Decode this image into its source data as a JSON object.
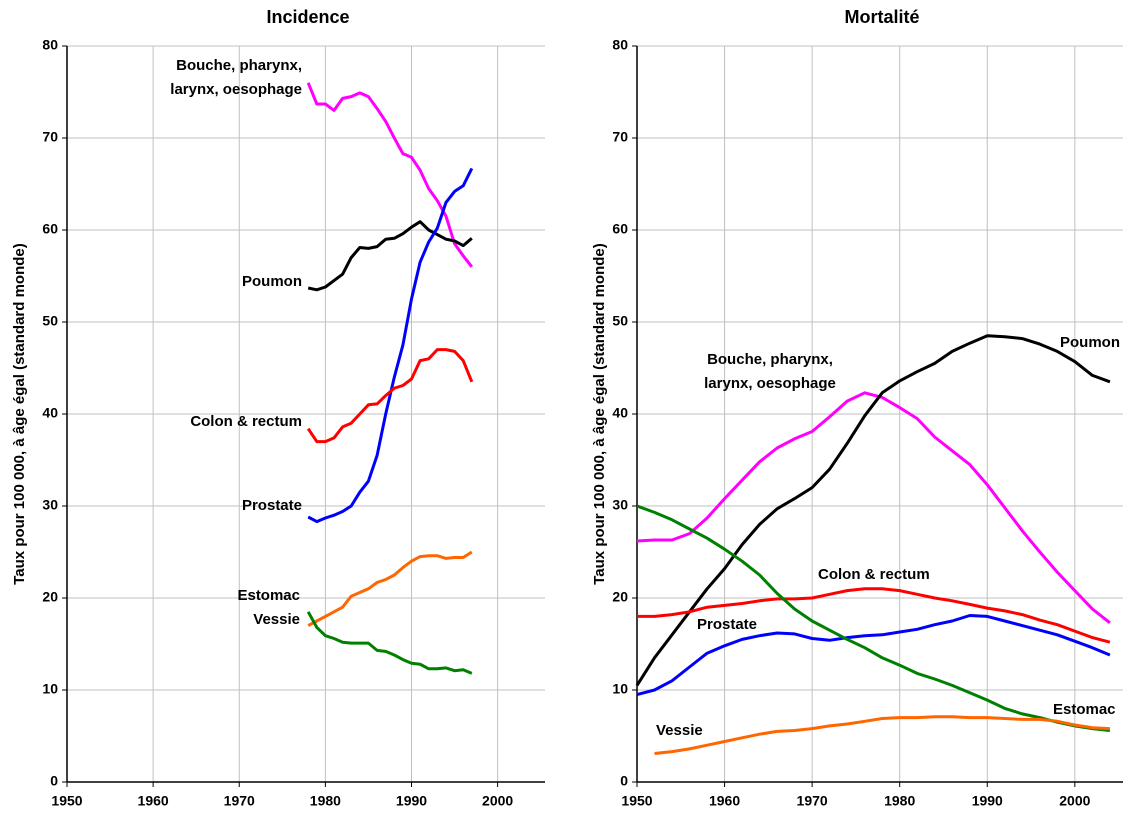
{
  "chart_data": [
    {
      "type": "line",
      "title": "Incidence",
      "ylabel": "Taux pour 100 000, à âge égal (standard monde)",
      "x": [
        1978,
        1979,
        1980,
        1981,
        1982,
        1983,
        1984,
        1985,
        1986,
        1987,
        1988,
        1989,
        1990,
        1991,
        1992,
        1993,
        1994,
        1995,
        1996,
        1997
      ],
      "series": [
        {
          "name": "Bouche, pharynx, larynx, oesophage",
          "color": "#ff00ff",
          "values": [
            76,
            73.7,
            73.7,
            73,
            74.3,
            74.5,
            74.9,
            74.5,
            73.2,
            71.8,
            70,
            68.3,
            67.9,
            66.5,
            64.5,
            63.2,
            61.5,
            58.5,
            57.2,
            56
          ]
        },
        {
          "name": "Poumon",
          "color": "#000000",
          "values": [
            53.7,
            53.5,
            53.8,
            54.5,
            55.2,
            57,
            58.1,
            58,
            58.2,
            59,
            59.1,
            59.6,
            60.3,
            60.9,
            60,
            59.5,
            59,
            58.8,
            58.3,
            59.1
          ]
        },
        {
          "name": "Prostate",
          "color": "#0000ff",
          "values": [
            28.8,
            28.3,
            28.7,
            29,
            29.4,
            30,
            31.5,
            32.7,
            35.5,
            40,
            44,
            47.5,
            52.5,
            56.5,
            58.7,
            60.2,
            63,
            64.2,
            64.8,
            66.7
          ]
        },
        {
          "name": "Colon & rectum",
          "color": "#ff0000",
          "values": [
            38.4,
            37,
            37,
            37.4,
            38.6,
            39,
            40,
            41,
            41.1,
            42,
            42.8,
            43.1,
            43.8,
            45.8,
            46,
            47,
            47,
            46.8,
            45.8,
            43.5
          ]
        },
        {
          "name": "Estomac",
          "color": "#ff6600",
          "values": [
            17,
            17.5,
            18,
            18.5,
            19,
            20.2,
            20.6,
            21,
            21.7,
            22,
            22.5,
            23.3,
            24,
            24.5,
            24.6,
            24.6,
            24.3,
            24.4,
            24.4,
            25
          ]
        },
        {
          "name": "Vessie",
          "color": "#008000",
          "values": [
            18.5,
            16.8,
            15.9,
            15.6,
            15.2,
            15.1,
            15.1,
            15.1,
            14.3,
            14.2,
            13.8,
            13.3,
            12.9,
            12.8,
            12.3,
            12.3,
            12.4,
            12.1,
            12.2,
            11.8
          ]
        }
      ],
      "xlim": [
        1950,
        2005.5
      ],
      "ylim": [
        0,
        80
      ],
      "xticks": [
        1950,
        1960,
        1970,
        1980,
        1990,
        2000
      ],
      "yticks": [
        0,
        10,
        20,
        30,
        40,
        50,
        60,
        70,
        80
      ],
      "grid": true
    },
    {
      "type": "line",
      "title": "Mortalité",
      "ylabel": "Taux pour 100 000, à âge égal (standard monde)",
      "x": [
        1950,
        1952,
        1954,
        1956,
        1958,
        1960,
        1962,
        1964,
        1966,
        1968,
        1970,
        1972,
        1974,
        1976,
        1978,
        1980,
        1982,
        1984,
        1986,
        1988,
        1990,
        1992,
        1994,
        1996,
        1998,
        2000,
        2002,
        2004
      ],
      "series": [
        {
          "name": "Bouche, pharynx, larynx, oesophage",
          "color": "#ff00ff",
          "values": [
            26.2,
            26.3,
            26.3,
            27,
            28.7,
            30.8,
            32.8,
            34.8,
            36.3,
            37.3,
            38.1,
            39.7,
            41.4,
            42.3,
            41.8,
            40.7,
            39.5,
            37.5,
            36,
            34.5,
            32.3,
            29.8,
            27.3,
            25,
            22.8,
            20.8,
            18.8,
            17.3
          ]
        },
        {
          "name": "Poumon",
          "color": "#000000",
          "values": [
            10.5,
            13.5,
            16,
            18.5,
            21,
            23.2,
            25.8,
            28,
            29.7,
            30.8,
            32,
            34,
            36.8,
            39.8,
            42.3,
            43.6,
            44.6,
            45.5,
            46.8,
            47.7,
            48.5,
            48.4,
            48.2,
            47.6,
            46.8,
            45.7,
            44.2,
            43.5
          ]
        },
        {
          "name": "Prostate",
          "color": "#0000ff",
          "values": [
            9.5,
            10,
            11,
            12.5,
            14,
            14.8,
            15.5,
            15.9,
            16.2,
            16.1,
            15.6,
            15.4,
            15.7,
            15.9,
            16,
            16.3,
            16.6,
            17.1,
            17.5,
            18.1,
            18,
            17.5,
            17,
            16.5,
            16,
            15.3,
            14.6,
            13.8
          ]
        },
        {
          "name": "Colon & rectum",
          "color": "#ff0000",
          "values": [
            18,
            18,
            18.2,
            18.5,
            19,
            19.2,
            19.4,
            19.7,
            19.9,
            19.9,
            20,
            20.4,
            20.8,
            21,
            21,
            20.8,
            20.4,
            20,
            19.7,
            19.3,
            18.9,
            18.6,
            18.2,
            17.6,
            17.1,
            16.4,
            15.7,
            15.2
          ]
        },
        {
          "name": "Estomac",
          "color": "#008000",
          "values": [
            30,
            29.3,
            28.5,
            27.5,
            26.5,
            25.3,
            24,
            22.5,
            20.5,
            18.8,
            17.5,
            16.5,
            15.5,
            14.6,
            13.5,
            12.7,
            11.8,
            11.2,
            10.5,
            9.7,
            8.9,
            8,
            7.4,
            7,
            6.5,
            6.1,
            5.8,
            5.6
          ]
        },
        {
          "name": "Vessie",
          "color": "#ff6600",
          "values": [
            null,
            3.1,
            3.3,
            3.6,
            4,
            4.4,
            4.8,
            5.2,
            5.5,
            5.6,
            5.8,
            6.1,
            6.3,
            6.6,
            6.9,
            7,
            7,
            7.1,
            7.1,
            7,
            7,
            6.9,
            6.8,
            6.8,
            6.6,
            6.2,
            5.9,
            5.8
          ]
        }
      ],
      "xlim": [
        1950,
        2005.5
      ],
      "ylim": [
        0,
        80
      ],
      "xticks": [
        1950,
        1960,
        1970,
        1980,
        1990,
        2000
      ],
      "yticks": [
        0,
        10,
        20,
        30,
        40,
        50,
        60,
        70,
        80
      ],
      "grid": true
    }
  ]
}
